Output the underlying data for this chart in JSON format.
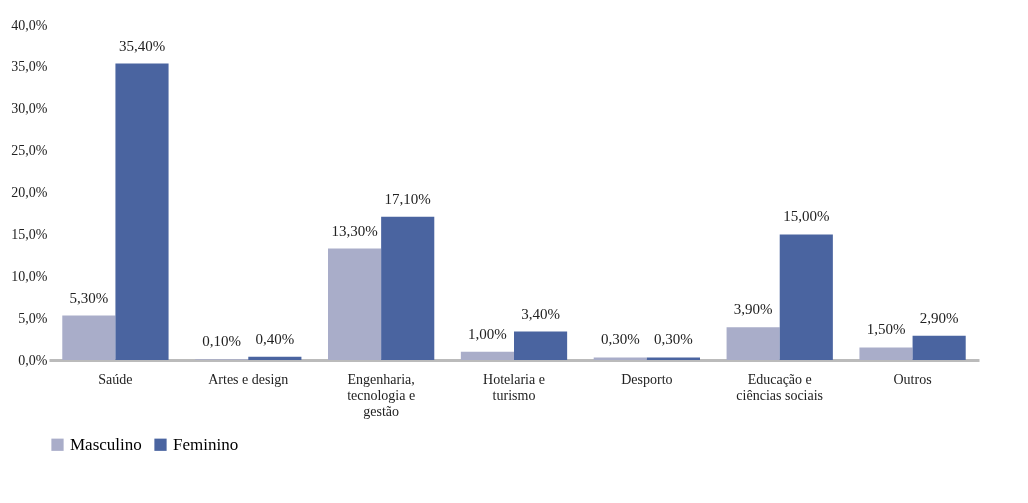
{
  "chart_data": {
    "type": "bar",
    "categories": [
      "Saúde",
      "Artes e design",
      "Engenharia, tecnologia e gestão",
      "Hotelaria e turismo",
      "Desporto",
      "Educação e ciências sociais",
      "Outros"
    ],
    "series": [
      {
        "name": "Masculino",
        "color": "#a9adc9",
        "values": [
          5.3,
          0.1,
          13.3,
          1.0,
          0.3,
          3.9,
          1.5
        ],
        "value_labels": [
          "5,30%",
          "0,10%",
          "13,30%",
          "1,00%",
          "0,30%",
          "3,90%",
          "1,50%"
        ]
      },
      {
        "name": "Feminino",
        "color": "#4a64a0",
        "values": [
          35.4,
          0.4,
          17.1,
          3.4,
          0.3,
          15.0,
          2.9
        ],
        "value_labels": [
          "35,40%",
          "0,40%",
          "17,10%",
          "3,40%",
          "0,30%",
          "15,00%",
          "2,90%"
        ]
      }
    ],
    "ylim": [
      0,
      40
    ],
    "yticks": [
      {
        "value": 0,
        "label": "0,0%"
      },
      {
        "value": 5,
        "label": "5,0%"
      },
      {
        "value": 10,
        "label": "10,0%"
      },
      {
        "value": 15,
        "label": "15,0%"
      },
      {
        "value": 20,
        "label": "20,0%"
      },
      {
        "value": 25,
        "label": "25,0%"
      },
      {
        "value": 30,
        "label": "30,0%"
      },
      {
        "value": 35,
        "label": "35,0%"
      },
      {
        "value": 40,
        "label": "40,0%"
      }
    ],
    "grid": false,
    "legend": "bottom"
  }
}
